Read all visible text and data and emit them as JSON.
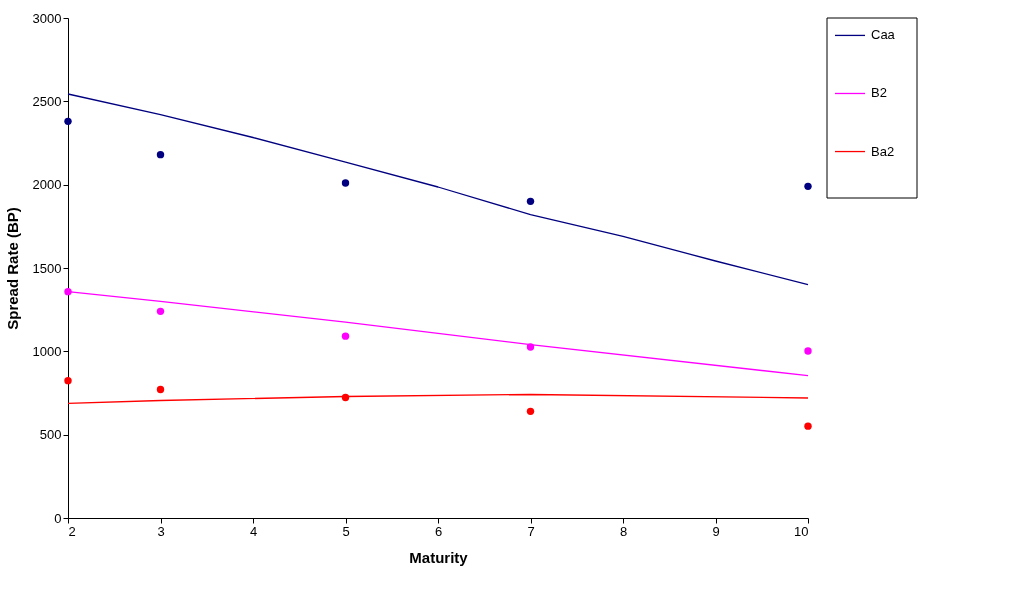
{
  "chart_data": {
    "type": "line",
    "xlabel": "Maturity",
    "ylabel": "Spread Rate (BP)",
    "xlim": [
      2,
      10
    ],
    "xticks": [
      2,
      3,
      4,
      5,
      6,
      7,
      8,
      9,
      10
    ],
    "ylim": [
      0,
      3000
    ],
    "yticks": [
      0,
      500,
      1000,
      1500,
      2000,
      2500,
      3000
    ],
    "grid": false,
    "legend": "right",
    "series": [
      {
        "name": "Caa",
        "type": "line",
        "marker": "none",
        "color": "#000080",
        "x": [
          2,
          3,
          4,
          5,
          6,
          7,
          8,
          9,
          10
        ],
        "values": [
          2544,
          2420,
          2283,
          2135,
          1986,
          1820,
          1690,
          1542,
          1400
        ]
      },
      {
        "type": "scatter",
        "marker": "circle",
        "color": "#000080",
        "x": [
          2,
          3,
          5,
          7,
          10
        ],
        "values": [
          2380,
          2180,
          2010,
          1900,
          1990
        ]
      },
      {
        "name": "B2",
        "type": "line",
        "marker": "none",
        "color": "#ff00ff",
        "x": [
          2,
          3,
          5,
          7,
          10
        ],
        "values": [
          1358,
          1300,
          1175,
          1040,
          854
        ]
      },
      {
        "type": "scatter",
        "marker": "circle",
        "color": "#ff00ff",
        "x": [
          2,
          3,
          5,
          7,
          10
        ],
        "values": [
          1358,
          1240,
          1091,
          1026,
          1002
        ]
      },
      {
        "name": "Ba2",
        "type": "line",
        "marker": "none",
        "color": "#ff0000",
        "x": [
          2,
          3,
          5,
          7,
          10
        ],
        "values": [
          688,
          705,
          729,
          741,
          720
        ]
      },
      {
        "type": "scatter",
        "marker": "circle",
        "color": "#ff0000",
        "x": [
          2,
          3,
          5,
          7,
          10
        ],
        "values": [
          824,
          771,
          723,
          640,
          551
        ]
      }
    ]
  }
}
